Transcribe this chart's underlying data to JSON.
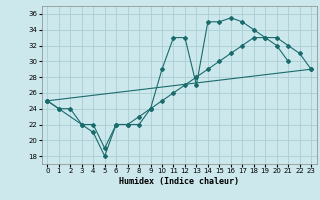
{
  "xlabel": "Humidex (Indice chaleur)",
  "bg_color": "#cce8ed",
  "grid_color": "#aacdd4",
  "line_color": "#1a6b6b",
  "xlim": [
    -0.5,
    23.5
  ],
  "ylim": [
    17,
    37
  ],
  "yticks": [
    18,
    20,
    22,
    24,
    26,
    28,
    30,
    32,
    34,
    36
  ],
  "xticks": [
    0,
    1,
    2,
    3,
    4,
    5,
    6,
    7,
    8,
    9,
    10,
    11,
    12,
    13,
    14,
    15,
    16,
    17,
    18,
    19,
    20,
    21,
    22,
    23
  ],
  "line1_x": [
    0,
    1,
    3,
    4,
    5,
    6,
    7,
    8,
    9,
    10,
    11,
    12,
    13,
    14,
    15,
    16,
    17,
    18,
    19,
    20,
    21
  ],
  "line1_y": [
    25,
    24,
    22,
    21,
    18,
    22,
    22,
    22,
    24,
    29,
    33,
    33,
    27,
    35,
    35,
    35.5,
    35,
    34,
    33,
    32,
    30
  ],
  "line2_x": [
    0,
    23
  ],
  "line2_y": [
    25,
    29
  ],
  "line3_x": [
    0,
    1,
    2,
    3,
    4,
    5,
    6,
    7,
    8,
    9,
    10,
    11,
    12,
    13,
    14,
    15,
    16,
    17,
    18,
    19,
    20,
    21,
    22,
    23
  ],
  "line3_y": [
    25,
    24,
    24,
    22,
    22,
    19,
    22,
    22,
    23,
    24,
    25,
    26,
    27,
    28,
    29,
    30,
    31,
    32,
    33,
    33,
    33,
    32,
    31,
    29
  ]
}
